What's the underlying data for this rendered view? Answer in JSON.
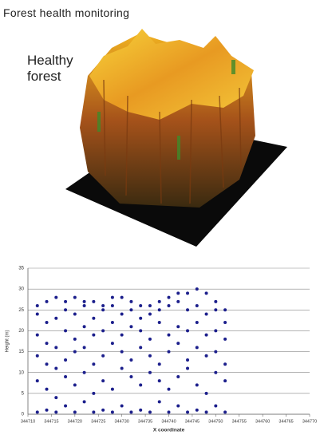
{
  "title": "Forest health monitoring",
  "image_label": "Healthy forest",
  "chart_data": {
    "type": "scatter",
    "x_label": "X coordinate",
    "y_label": "Height (m)",
    "color": "#1c1f8c",
    "grid": true,
    "xlim": [
      344710,
      344770
    ],
    "xticks": [
      344710,
      344715,
      344720,
      344725,
      344730,
      344735,
      344740,
      344745,
      344750,
      344755,
      344760,
      344765,
      344770
    ],
    "ylim": [
      0,
      35
    ],
    "yticks": [
      0,
      5,
      10,
      15,
      20,
      25,
      30,
      35
    ],
    "x": [
      344712,
      344712,
      344712,
      344712,
      344712,
      344712,
      344714,
      344714,
      344714,
      344714,
      344714,
      344714,
      344716,
      344716,
      344716,
      344716,
      344716,
      344716,
      344718,
      344718,
      344718,
      344718,
      344718,
      344718,
      344720,
      344720,
      344720,
      344720,
      344720,
      344720,
      344722,
      344722,
      344722,
      344722,
      344722,
      344722,
      344724,
      344724,
      344724,
      344724,
      344724,
      344724,
      344726,
      344726,
      344726,
      344726,
      344726,
      344726,
      344728,
      344728,
      344728,
      344728,
      344728,
      344728,
      344730,
      344730,
      344730,
      344730,
      344730,
      344730,
      344732,
      344732,
      344732,
      344732,
      344732,
      344732,
      344734,
      344734,
      344734,
      344734,
      344734,
      344734,
      344736,
      344736,
      344736,
      344736,
      344736,
      344736,
      344738,
      344738,
      344738,
      344738,
      344738,
      344738,
      344740,
      344740,
      344740,
      344740,
      344740,
      344740,
      344742,
      344742,
      344742,
      344742,
      344742,
      344742,
      344744,
      344744,
      344744,
      344744,
      344744,
      344744,
      344746,
      344746,
      344746,
      344746,
      344746,
      344746,
      344748,
      344748,
      344748,
      344748,
      344748,
      344748,
      344750,
      344750,
      344750,
      344750,
      344750,
      344750,
      344752,
      344752,
      344752,
      344752,
      344752,
      344752
    ],
    "values": [
      0.5,
      8,
      14,
      19,
      24,
      26,
      1,
      6,
      12,
      17,
      22,
      27,
      0.5,
      4,
      11,
      16,
      23,
      28,
      2,
      9,
      13,
      20,
      25,
      27,
      0.5,
      7,
      15,
      18,
      24,
      28,
      3,
      10,
      16,
      21,
      26,
      27,
      0.5,
      5,
      12,
      19,
      23,
      27,
      1,
      8,
      14,
      20,
      25,
      26,
      0.5,
      6,
      17,
      22,
      26,
      28,
      2,
      11,
      15,
      19,
      24,
      28,
      0.5,
      9,
      13,
      21,
      25,
      27,
      1,
      7,
      16,
      20,
      23,
      26,
      0.5,
      10,
      14,
      18,
      24,
      26,
      3,
      8,
      12,
      22,
      25,
      27,
      0.5,
      6,
      15,
      19,
      26,
      28,
      2,
      9,
      17,
      21,
      27,
      29,
      0.5,
      11,
      13,
      20,
      25,
      29,
      1,
      7,
      16,
      22,
      26,
      30,
      0.5,
      5,
      14,
      19,
      24,
      29,
      2,
      10,
      15,
      20,
      25,
      27,
      0.5,
      8,
      12,
      18,
      22,
      25
    ]
  }
}
